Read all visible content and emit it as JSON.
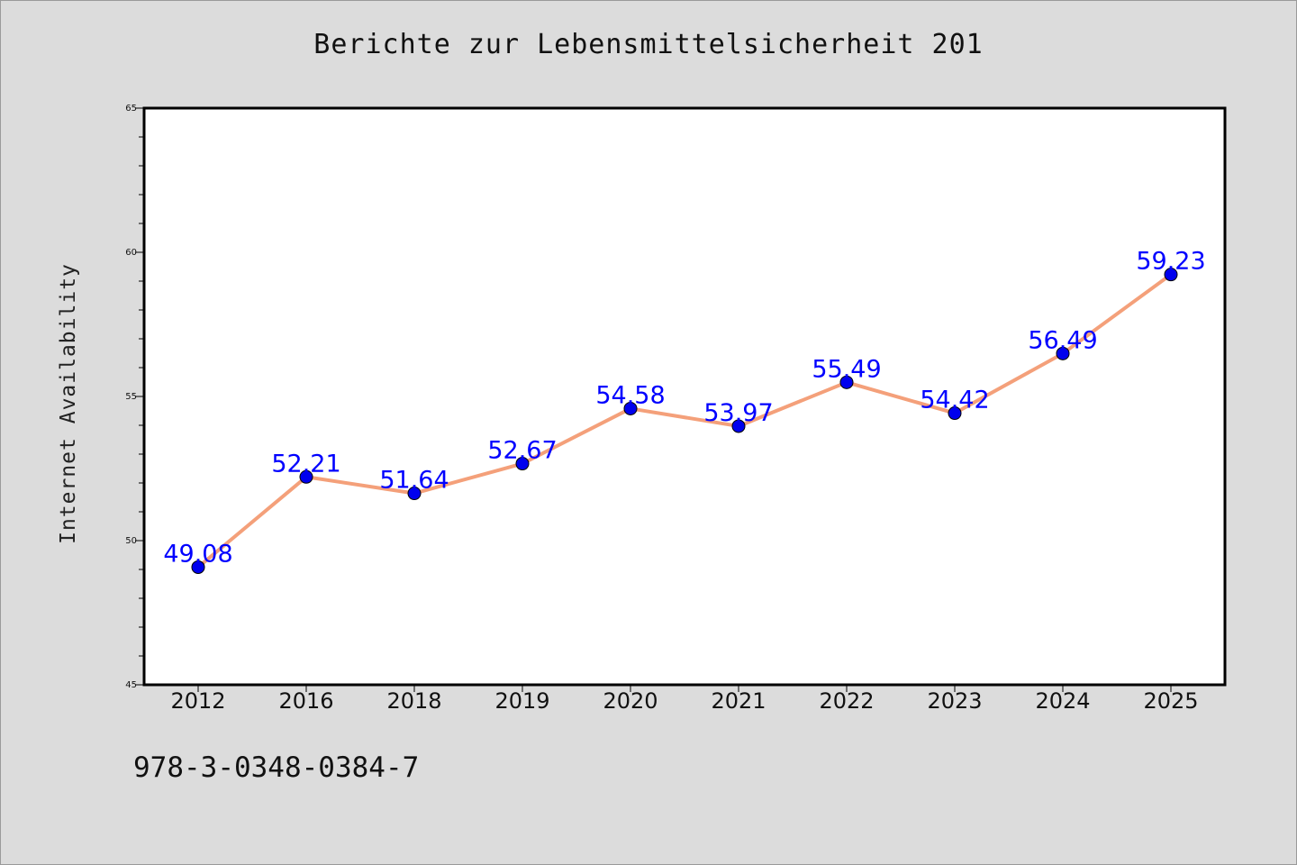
{
  "chart_data": {
    "type": "line",
    "title": "Berichte zur Lebensmittelsicherheit 201",
    "xlabel": "",
    "ylabel": "Internet Availability",
    "categories": [
      "2012",
      "2016",
      "2018",
      "2019",
      "2020",
      "2021",
      "2022",
      "2023",
      "2024",
      "2025"
    ],
    "series": [
      {
        "values": [
          49.08,
          52.21,
          51.64,
          52.67,
          54.58,
          53.97,
          55.49,
          54.42,
          56.49,
          59.23
        ],
        "data_labels": [
          "49.08",
          "52.21",
          "51.64",
          "52.67",
          "54.58",
          "53.97",
          "55.49",
          "54.42",
          "56.49",
          "59.23"
        ],
        "line_color": "#f4a07a",
        "marker_color": "#0000ee"
      }
    ],
    "ylim": [
      45,
      65
    ],
    "yticks": [
      "45",
      "50",
      "55",
      "60",
      "65"
    ],
    "grid": false,
    "legend": "none"
  },
  "footer_text": "978-3-0348-0384-7",
  "colors": {
    "background": "#dcdcdc",
    "plot_background": "#ffffff",
    "label_color": "#0000ff"
  }
}
